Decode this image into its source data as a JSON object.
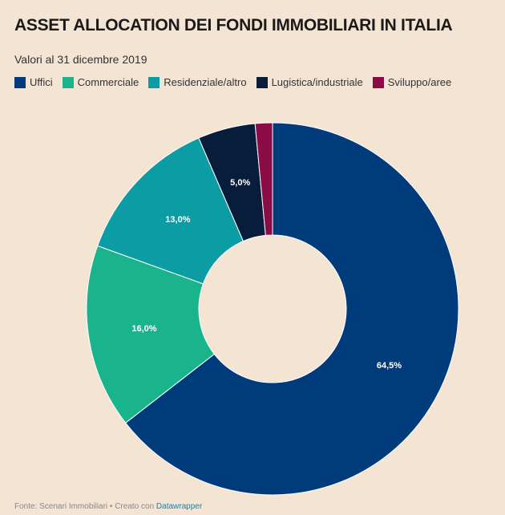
{
  "chart_data": {
    "type": "donut",
    "title": "ASSET ALLOCATION DEI FONDI IMMOBILIARI IN ITALIA",
    "subtitle": "Valori al 31 dicembre 2019",
    "categories": [
      "Uffici",
      "Commerciale",
      "Residenziale/altro",
      "Lugistica/industriale",
      "Sviluppo/aree"
    ],
    "values": [
      64.5,
      16.0,
      13.0,
      5.0,
      1.5
    ],
    "value_labels": [
      "64,5%",
      "16,0%",
      "13,0%",
      "5,0%",
      null
    ],
    "colors": [
      "#003b7c",
      "#19b48b",
      "#0b9da3",
      "#081d3c",
      "#8b0b46"
    ],
    "legend": "top",
    "source": "Fonte: Scenari Immobiliari • Creato con",
    "credit": "Datawrapper"
  }
}
